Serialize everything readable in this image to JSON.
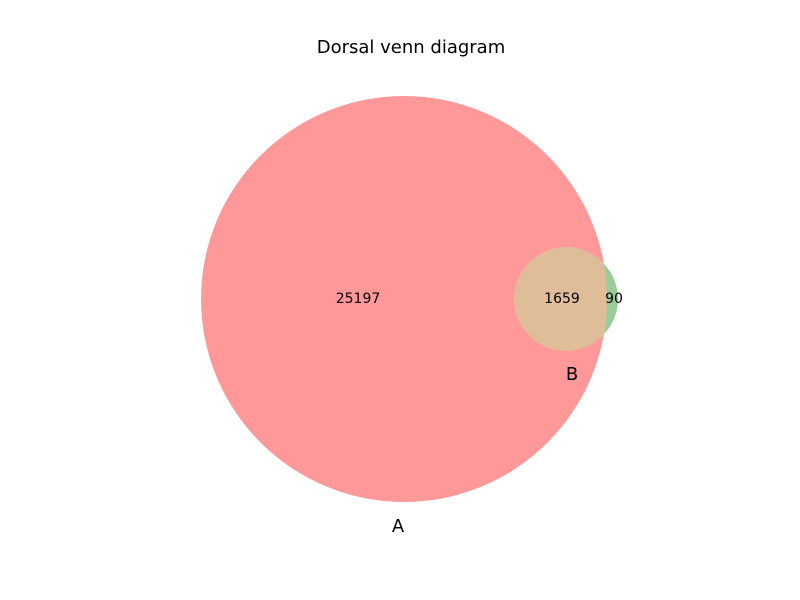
{
  "title": "Dorsal venn diagram",
  "sets": {
    "A": {
      "label": "A",
      "color": "#ff9999"
    },
    "B": {
      "label": "B",
      "color": "#99cc99"
    }
  },
  "overlap_color": "#e0bd99",
  "regions": {
    "A_only": "25197",
    "A_and_B": "1659",
    "B_only": "90"
  }
}
